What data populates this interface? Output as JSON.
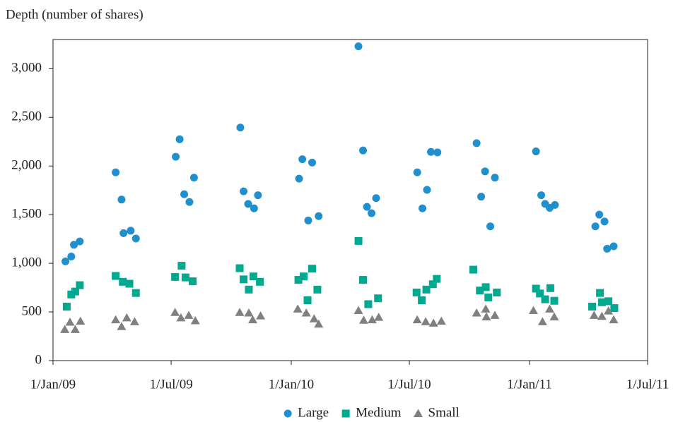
{
  "chart_data": {
    "type": "scatter",
    "y_label": "Depth (number of shares)",
    "xlim": [
      "2009-01-01",
      "2011-07-01"
    ],
    "xticks": [
      {
        "value": "2009-01-01",
        "label": "1/Jan/09"
      },
      {
        "value": "2009-07-01",
        "label": "1/Jul/09"
      },
      {
        "value": "2010-01-01",
        "label": "1/Jan/10"
      },
      {
        "value": "2010-07-01",
        "label": "1/Jul/10"
      },
      {
        "value": "2011-01-01",
        "label": "1/Jan/11"
      },
      {
        "value": "2011-07-01",
        "label": "1/Jul/11"
      }
    ],
    "ylim": [
      0,
      3300
    ],
    "yticks": [
      0,
      {
        "value": 500,
        "label": "500"
      },
      {
        "value": 1000,
        "label": "1,000"
      },
      {
        "value": 1500,
        "label": "1,500"
      },
      {
        "value": 2000,
        "label": "2,000"
      },
      {
        "value": 2500,
        "label": "2,500"
      },
      {
        "value": 3000,
        "label": "3,000"
      }
    ],
    "legend": "bottom",
    "series": [
      {
        "name": "Large",
        "color": "#1f8fce",
        "marker": "circle",
        "x": [
          "2009-01-20",
          "2009-01-29",
          "2009-02-02",
          "2009-02-11",
          "2009-04-07",
          "2009-04-16",
          "2009-04-19",
          "2009-04-30",
          "2009-05-08",
          "2009-07-08",
          "2009-07-14",
          "2009-07-21",
          "2009-07-29",
          "2009-08-05",
          "2009-10-15",
          "2009-10-20",
          "2009-10-27",
          "2009-11-05",
          "2009-11-11",
          "2010-01-13",
          "2010-01-18",
          "2010-01-27",
          "2010-02-02",
          "2010-02-12",
          "2010-04-14",
          "2010-04-21",
          "2010-04-27",
          "2010-05-04",
          "2010-05-11",
          "2010-07-13",
          "2010-07-21",
          "2010-07-28",
          "2010-08-03",
          "2010-08-13",
          "2010-10-12",
          "2010-10-19",
          "2010-10-25",
          "2010-11-02",
          "2010-11-09",
          "2011-01-11",
          "2011-01-19",
          "2011-01-25",
          "2011-02-01",
          "2011-02-09",
          "2011-04-12",
          "2011-04-18",
          "2011-04-26",
          "2011-04-30",
          "2011-05-10"
        ],
        "values": [
          1020,
          1070,
          1190,
          1225,
          1935,
          1655,
          1310,
          1335,
          1255,
          2095,
          2275,
          1710,
          1630,
          1880,
          2395,
          1740,
          1610,
          1565,
          1700,
          1870,
          2070,
          1440,
          2035,
          1485,
          3230,
          2160,
          1580,
          1515,
          1670,
          1935,
          1565,
          1755,
          2145,
          2140,
          2235,
          1685,
          1945,
          1380,
          1880,
          2150,
          1700,
          1610,
          1570,
          1600,
          1380,
          1500,
          1430,
          1150,
          1175
        ]
      },
      {
        "name": "Medium",
        "color": "#00a98f",
        "marker": "square",
        "x": [
          "2009-01-22",
          "2009-01-29",
          "2009-02-04",
          "2009-02-11",
          "2009-04-07",
          "2009-04-18",
          "2009-04-28",
          "2009-05-08",
          "2009-07-07",
          "2009-07-17",
          "2009-07-23",
          "2009-08-03",
          "2009-10-14",
          "2009-10-20",
          "2009-10-28",
          "2009-11-04",
          "2009-11-14",
          "2010-01-12",
          "2010-01-20",
          "2010-01-26",
          "2010-02-02",
          "2010-02-10",
          "2010-04-14",
          "2010-04-21",
          "2010-04-29",
          "2010-05-14",
          "2010-07-12",
          "2010-07-20",
          "2010-07-27",
          "2010-08-06",
          "2010-08-12",
          "2010-10-07",
          "2010-10-17",
          "2010-10-26",
          "2010-10-30",
          "2010-11-12",
          "2011-01-11",
          "2011-01-17",
          "2011-01-25",
          "2011-02-02",
          "2011-02-08",
          "2011-04-07",
          "2011-04-19",
          "2011-04-22",
          "2011-05-02",
          "2011-05-11"
        ],
        "values": [
          555,
          680,
          710,
          775,
          870,
          810,
          790,
          695,
          860,
          975,
          855,
          815,
          950,
          835,
          730,
          865,
          810,
          830,
          865,
          620,
          945,
          730,
          1230,
          830,
          580,
          640,
          700,
          620,
          730,
          785,
          840,
          935,
          720,
          755,
          650,
          700,
          740,
          690,
          630,
          745,
          615,
          555,
          695,
          600,
          610,
          540
        ]
      },
      {
        "name": "Small",
        "color": "#808080",
        "marker": "triangle",
        "x": [
          "2009-01-19",
          "2009-01-27",
          "2009-02-04",
          "2009-02-12",
          "2009-04-07",
          "2009-04-16",
          "2009-04-24",
          "2009-05-06",
          "2009-07-07",
          "2009-07-16",
          "2009-07-28",
          "2009-08-07",
          "2009-10-14",
          "2009-10-28",
          "2009-11-03",
          "2009-11-15",
          "2010-01-11",
          "2010-01-24",
          "2010-02-05",
          "2010-02-12",
          "2010-04-14",
          "2010-04-22",
          "2010-05-05",
          "2010-05-15",
          "2010-07-13",
          "2010-07-26",
          "2010-08-07",
          "2010-08-19",
          "2010-10-12",
          "2010-10-26",
          "2010-10-27",
          "2010-11-09",
          "2011-01-07",
          "2011-01-21",
          "2011-02-01",
          "2011-02-08",
          "2011-04-10",
          "2011-04-22",
          "2011-05-02",
          "2011-05-10"
        ],
        "values": [
          320,
          395,
          320,
          405,
          420,
          350,
          440,
          400,
          495,
          440,
          465,
          410,
          495,
          490,
          420,
          460,
          530,
          490,
          430,
          375,
          515,
          415,
          420,
          445,
          420,
          400,
          385,
          405,
          490,
          530,
          450,
          465,
          515,
          400,
          530,
          450,
          465,
          455,
          510,
          420
        ]
      }
    ]
  }
}
